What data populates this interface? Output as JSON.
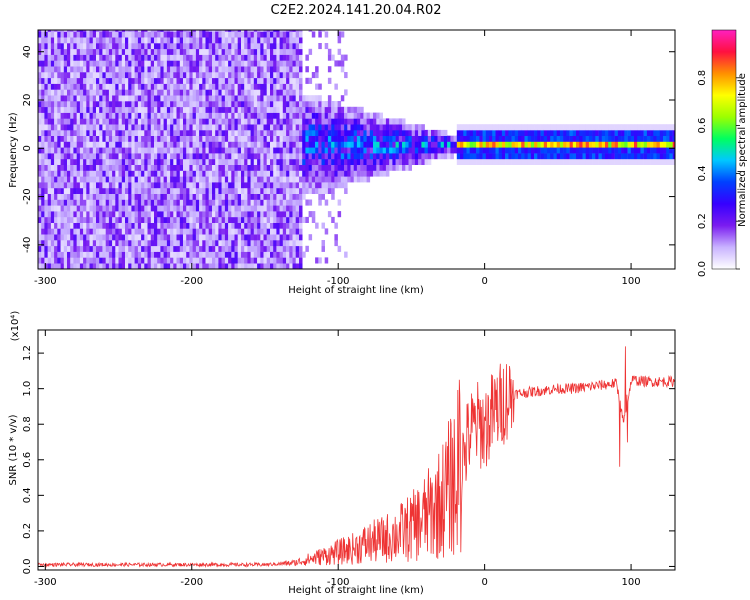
{
  "title": "C2E2.2024.141.20.04.R02",
  "chart_data": [
    {
      "type": "heatmap",
      "xlabel": "Height of straight line (km)",
      "ylabel": "Frequency (Hz)",
      "xlim": [
        -305,
        130
      ],
      "ylim": [
        -50,
        49
      ],
      "xticks": [
        -300,
        -200,
        -100,
        0,
        100
      ],
      "yticks": [
        -40,
        -20,
        0,
        20,
        40
      ],
      "colorbar": {
        "label": "Normalized spectral amplitude",
        "range": [
          0.0,
          1.0
        ],
        "ticks": [
          0.0,
          0.2,
          0.4,
          0.6,
          0.8
        ],
        "colors": [
          "#ffffff",
          "#c9b3ff",
          "#7a1cf0",
          "#3600ff",
          "#0040ff",
          "#00c8ff",
          "#00ff60",
          "#9cff00",
          "#ffff00",
          "#ff9000",
          "#ff1040",
          "#ff20c0"
        ]
      },
      "regions": [
        {
          "x_range": [
            -305,
            -125
          ],
          "description": "broadband noise",
          "amplitude": 0.15
        },
        {
          "x_range": [
            -125,
            -20
          ],
          "description": "narrowing signal band",
          "amplitude": 0.35
        },
        {
          "x_range": [
            -20,
            130
          ],
          "description": "narrow line near 0 Hz",
          "amplitude": 0.85
        }
      ]
    },
    {
      "type": "line",
      "xlabel": "Height of straight line (km)",
      "ylabel": "SNR (10 * v/v)",
      "y_multiplier": "(x10⁴)",
      "xlim": [
        -305,
        130
      ],
      "ylim": [
        -0.02,
        1.33
      ],
      "xticks": [
        -300,
        -200,
        -100,
        0,
        100
      ],
      "yticks": [
        0.0,
        0.2,
        0.4,
        0.6,
        0.8,
        1.0,
        1.2
      ],
      "series": [
        {
          "color": "#ee3333",
          "x": [
            -305,
            -250,
            -200,
            -150,
            -130,
            -120,
            -110,
            -100,
            -90,
            -80,
            -70,
            -60,
            -50,
            -40,
            -30,
            -20,
            -15,
            -10,
            -5,
            0,
            5,
            10,
            15,
            20,
            30,
            40,
            50,
            60,
            70,
            80,
            90,
            95,
            100,
            110,
            120,
            130
          ],
          "y": [
            0.01,
            0.01,
            0.01,
            0.01,
            0.02,
            0.04,
            0.06,
            0.08,
            0.1,
            0.13,
            0.15,
            0.18,
            0.22,
            0.28,
            0.36,
            0.5,
            0.6,
            0.75,
            0.8,
            0.78,
            0.85,
            0.9,
            0.95,
            0.97,
            0.98,
            0.99,
            1.0,
            1.0,
            1.01,
            1.02,
            1.03,
            0.8,
            1.05,
            1.04,
            1.04,
            1.04
          ]
        }
      ]
    }
  ]
}
